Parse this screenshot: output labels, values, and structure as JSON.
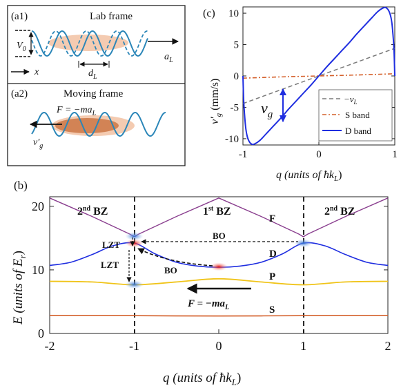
{
  "panel_a1": {
    "tag": "(a1)",
    "title": "Lab frame",
    "depth_label": "V",
    "depth_sub": "0",
    "position_label": "x",
    "period_label": "d",
    "period_sub": "L",
    "accel_label": "a",
    "accel_sub": "L"
  },
  "panel_a2": {
    "tag": "(a2)",
    "title": "Moving frame",
    "force_main": "F = −ma",
    "force_sub": "L",
    "velocity_label": "v′",
    "velocity_sub": "g"
  },
  "colors": {
    "cloud": "#f2c2a3",
    "cloud_dark": "#c9703f",
    "wave": "#2b86b8",
    "s_band": "#d4602b",
    "p_band": "#f0c419",
    "d_band": "#1f2ee0",
    "f_band": "#8a3f8f",
    "gray_line": "#7a7a7a",
    "red_blob": "#e8241e",
    "blue_blob": "#5b8fd4"
  },
  "chart_c": {
    "tag": "(c)",
    "type": "line",
    "xlabel_main": "q (units of ħk",
    "xlabel_sub": "L",
    "xlabel_end": ")",
    "ylabel_main": "v′",
    "ylabel_sub": "g",
    "ylabel_end": " (mm/s)",
    "xlim": [
      -1,
      1
    ],
    "ylim": [
      -11,
      11
    ],
    "xticks": [
      "-1",
      "0",
      "1"
    ],
    "yticks": [
      "10",
      "5",
      "0",
      "-5",
      "-10"
    ],
    "annotation_main": "v",
    "annotation_sub": "g",
    "legend": [
      {
        "label": "−v",
        "sub": "L",
        "style": "dash"
      },
      {
        "label": "S band",
        "sub": "",
        "style": "dashdot"
      },
      {
        "label": "D band",
        "sub": "",
        "style": "solid"
      }
    ],
    "series": {
      "vL": {
        "x": [
          -1,
          1
        ],
        "y": [
          -4.4,
          4.4
        ]
      },
      "S": {
        "x": [
          -1,
          -0.5,
          0,
          0.5,
          1
        ],
        "y": [
          -0.35,
          -0.15,
          0,
          0.15,
          0.35
        ]
      },
      "D": {
        "x": [
          -1,
          -0.99,
          -0.97,
          -0.95,
          -0.92,
          -0.88,
          -0.84,
          -0.78,
          -0.7,
          -0.6,
          -0.5,
          -0.4,
          -0.3,
          -0.2,
          -0.1,
          0,
          0.1,
          0.2,
          0.3,
          0.4,
          0.5,
          0.6,
          0.7,
          0.78,
          0.84,
          0.88,
          0.92,
          0.95,
          0.97,
          0.99,
          1
        ],
        "y": [
          0,
          -4,
          -7.5,
          -9.3,
          -10.4,
          -10.9,
          -10.8,
          -10.3,
          -9.3,
          -8.0,
          -6.7,
          -5.3,
          -4.0,
          -2.7,
          -1.4,
          0,
          1.4,
          2.7,
          4.0,
          5.3,
          6.7,
          8.0,
          9.3,
          10.3,
          10.8,
          10.9,
          10.4,
          9.3,
          7.5,
          4,
          0
        ]
      }
    }
  },
  "chart_b": {
    "tag": "(b)",
    "type": "line",
    "xlabel_main": "q (units of ħk",
    "xlabel_sub": "L",
    "xlabel_end": ")",
    "ylabel_main": "E (units of E",
    "ylabel_sub": "r",
    "ylabel_end": ")",
    "xlim": [
      -2,
      2
    ],
    "ylim": [
      0,
      21.5
    ],
    "xticks": [
      "-2",
      "-1",
      "0",
      "1",
      "2"
    ],
    "yticks": [
      "20",
      "10",
      "0"
    ],
    "zones": [
      {
        "main": "2",
        "sup": "nd",
        "rest": " BZ"
      },
      {
        "main": "1",
        "sup": "st",
        "rest": " BZ"
      },
      {
        "main": "2",
        "sup": "nd",
        "rest": " BZ"
      }
    ],
    "band_labels": [
      "F",
      "D",
      "P",
      "S"
    ],
    "annotations": {
      "lzt_upper": "LZT",
      "lzt_lower": "LZT",
      "bo_top": "BO",
      "bo_lower": "BO",
      "force_main": "F = −ma",
      "force_sub": "L"
    },
    "bands": {
      "S": {
        "x": [
          -2,
          -1,
          0,
          1,
          2
        ],
        "y": [
          2.85,
          2.8,
          2.75,
          2.8,
          2.85
        ]
      },
      "P": {
        "x": [
          -2,
          -1.5,
          -1,
          -0.5,
          0,
          0.5,
          1,
          1.5,
          2
        ],
        "y": [
          8.2,
          8.1,
          7.65,
          8.1,
          8.6,
          8.1,
          7.65,
          8.1,
          8.2
        ]
      },
      "D": {
        "x": [
          -2,
          -1.75,
          -1.5,
          -1.25,
          -1,
          -0.75,
          -0.5,
          -0.25,
          0,
          0.25,
          0.5,
          0.75,
          1,
          1.25,
          1.5,
          1.75,
          2
        ],
        "y": [
          10.7,
          11.2,
          12.4,
          13.8,
          14.2,
          12.5,
          11.2,
          10.6,
          10.4,
          10.6,
          11.2,
          12.5,
          14.2,
          13.8,
          12.4,
          11.2,
          10.7
        ]
      },
      "F": {
        "x": [
          -2,
          -1.5,
          -1.05,
          -1,
          -0.95,
          -0.5,
          0,
          0.5,
          0.95,
          1,
          1.05,
          1.5,
          2
        ],
        "y": [
          21.3,
          18.4,
          15.6,
          15.2,
          15.6,
          18.4,
          21.3,
          18.4,
          15.6,
          15.2,
          15.6,
          18.4,
          21.3
        ]
      }
    },
    "blobs": [
      {
        "color": "blue",
        "q": -1,
        "E": 15.3
      },
      {
        "color": "red",
        "q": -1,
        "E": 14.2
      },
      {
        "color": "blue",
        "q": -1,
        "E": 7.7
      },
      {
        "color": "red",
        "q": 0,
        "E": 10.5
      },
      {
        "color": "blue",
        "q": 1,
        "E": 14.2
      }
    ]
  }
}
